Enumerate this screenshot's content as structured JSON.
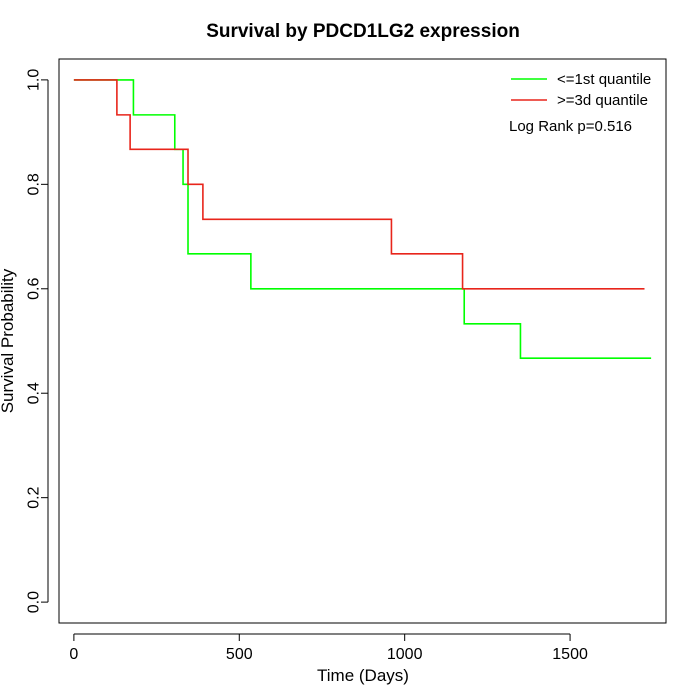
{
  "chart_data": {
    "type": "line",
    "step": true,
    "title": "Survival by PDCD1LG2 expression",
    "xlabel": "Time (Days)",
    "ylabel": "Survival Probability",
    "xlim": [
      -45,
      1790
    ],
    "ylim": [
      -0.04,
      1.04
    ],
    "x_ticks": [
      0,
      500,
      1000,
      1500
    ],
    "y_ticks": [
      0.0,
      0.2,
      0.4,
      0.6,
      0.8,
      1.0
    ],
    "x_tick_labels": [
      "0",
      "500",
      "1000",
      "1500"
    ],
    "y_tick_labels": [
      "0.0",
      "0.2",
      "0.4",
      "0.6",
      "0.8",
      "1.0"
    ],
    "grid": false,
    "legend_position": "top-right",
    "annotation": "Log Rank p=0.516",
    "series": [
      {
        "name": "<=1st quantile",
        "color": "#00ff00",
        "x": [
          0,
          180,
          305,
          330,
          345,
          535,
          1180,
          1350,
          1745
        ],
        "y": [
          1.0,
          0.933,
          0.867,
          0.8,
          0.667,
          0.6,
          0.533,
          0.467,
          0.467
        ]
      },
      {
        "name": ">=3d quantile",
        "color": "#e8251b",
        "x": [
          0,
          130,
          170,
          345,
          390,
          960,
          1175,
          1725
        ],
        "y": [
          1.0,
          0.933,
          0.867,
          0.8,
          0.733,
          0.667,
          0.6,
          0.6
        ]
      }
    ]
  }
}
